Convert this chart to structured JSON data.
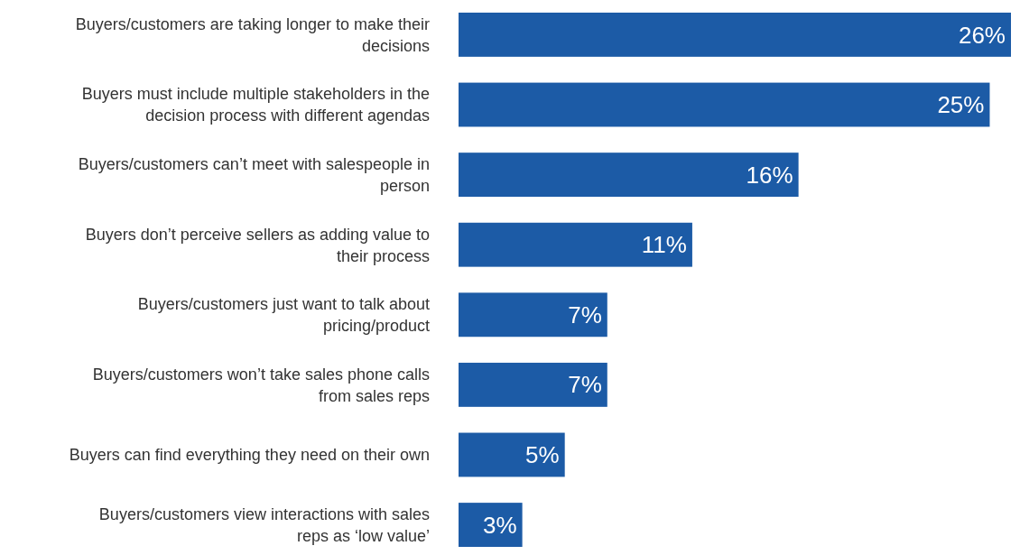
{
  "chart_data": {
    "type": "bar",
    "orientation": "horizontal",
    "categories": [
      "Buyers/customers are taking longer to make their decisions",
      "Buyers must include multiple stakeholders in the decision process with different agendas",
      "Buyers/customers can’t meet with salespeople in person",
      "Buyers don’t perceive sellers as adding value to their process",
      "Buyers/customers just want to talk about pricing/product",
      "Buyers/customers won’t take sales phone calls from sales reps",
      "Buyers can find everything they need on their own",
      "Buyers/customers view interactions with sales reps as ‘low value’"
    ],
    "values": [
      26,
      25,
      16,
      11,
      7,
      7,
      5,
      3
    ],
    "value_labels": [
      "26%",
      "25%",
      "16%",
      "11%",
      "7%",
      "7%",
      "5%",
      "3%"
    ],
    "color": "#1c5ba6"
  }
}
